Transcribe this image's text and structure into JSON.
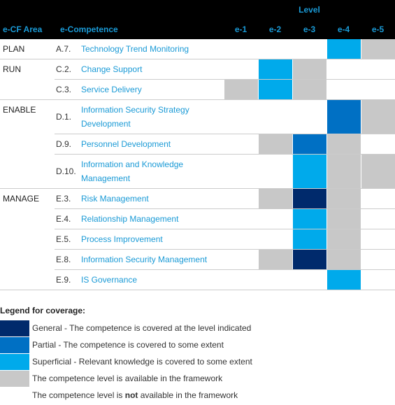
{
  "header": {
    "level": "Level",
    "area": "e-CF Area",
    "competence": "e-Competence",
    "levels": [
      "e-1",
      "e-2",
      "e-3",
      "e-4",
      "e-5"
    ]
  },
  "groups": [
    {
      "area": "PLAN",
      "rows": [
        {
          "code": "A.7.",
          "competence": "Technology Trend Monitoring",
          "coverage": [
            4,
            4,
            4,
            2,
            3
          ]
        }
      ]
    },
    {
      "area": "RUN",
      "rows": [
        {
          "code": "C.2.",
          "competence": "Change Support",
          "coverage": [
            4,
            2,
            3,
            4,
            4
          ]
        },
        {
          "code": "C.3.",
          "competence": "Service Delivery",
          "coverage": [
            3,
            2,
            3,
            4,
            4
          ]
        }
      ]
    },
    {
      "area": "ENABLE",
      "rows": [
        {
          "code": "D.1.",
          "competence": "Information Security Strategy Development",
          "coverage": [
            4,
            4,
            4,
            1,
            3
          ]
        },
        {
          "code": "D.9.",
          "competence": "Personnel Development",
          "coverage": [
            4,
            3,
            1,
            3,
            4
          ]
        },
        {
          "code": "D.10.",
          "competence": "Information and Knowledge Management",
          "coverage": [
            4,
            4,
            2,
            3,
            3
          ]
        }
      ]
    },
    {
      "area": "MANAGE",
      "rows": [
        {
          "code": "E.3.",
          "competence": "Risk Management",
          "coverage": [
            4,
            3,
            0,
            3,
            4
          ]
        },
        {
          "code": "E.4.",
          "competence": "Relationship Management",
          "coverage": [
            4,
            4,
            2,
            3,
            4
          ]
        },
        {
          "code": "E.5.",
          "competence": "Process Improvement",
          "coverage": [
            4,
            4,
            2,
            3,
            4
          ]
        },
        {
          "code": "E.8.",
          "competence": "Information Security Management",
          "coverage": [
            4,
            3,
            0,
            3,
            4
          ]
        },
        {
          "code": "E.9.",
          "competence": "IS Governance",
          "coverage": [
            4,
            4,
            4,
            2,
            4
          ]
        }
      ]
    }
  ],
  "legend": {
    "title": "Legend for coverage:",
    "items": [
      {
        "color": "#002a6c",
        "text": [
          "General - The competence is covered at the level indicated"
        ]
      },
      {
        "color": "#0070c4",
        "text": [
          "Partial - The competence is covered to some extent"
        ]
      },
      {
        "color": "#00aaeb",
        "text": [
          "Superficial - Relevant knowledge is covered to some extent"
        ]
      },
      {
        "color": "#c8c8c8",
        "text": [
          "The competence level is available in the framework"
        ]
      },
      {
        "color": "#ffffff",
        "text": [
          "The competence level is ",
          "not",
          " available in the framework"
        ]
      }
    ]
  }
}
